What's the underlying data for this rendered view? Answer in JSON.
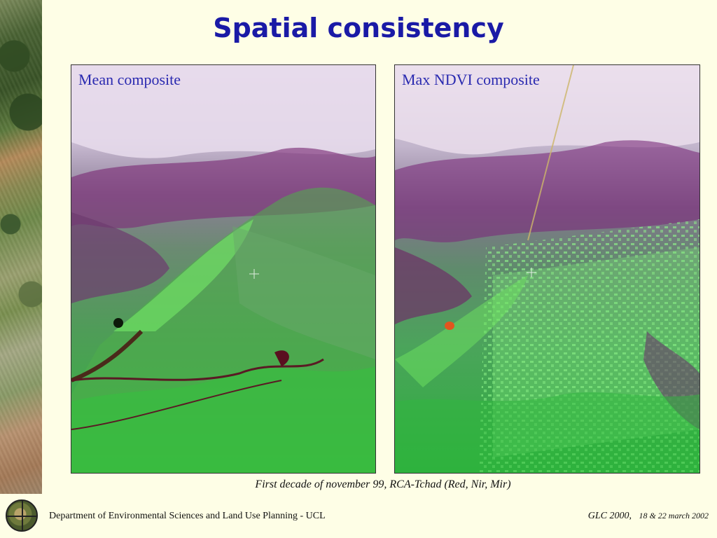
{
  "title": "Spatial consistency",
  "panels": {
    "left": {
      "label": "Mean composite"
    },
    "right": {
      "label": "Max NDVI composite"
    }
  },
  "caption": "First decade of  november 99, RCA-Tchad (Red, Nir, Mir)",
  "footer": {
    "department": "Department of Environmental Sciences and Land Use Planning - UCL",
    "event": "GLC 2000,",
    "dates": "18 & 22 march 2002"
  }
}
